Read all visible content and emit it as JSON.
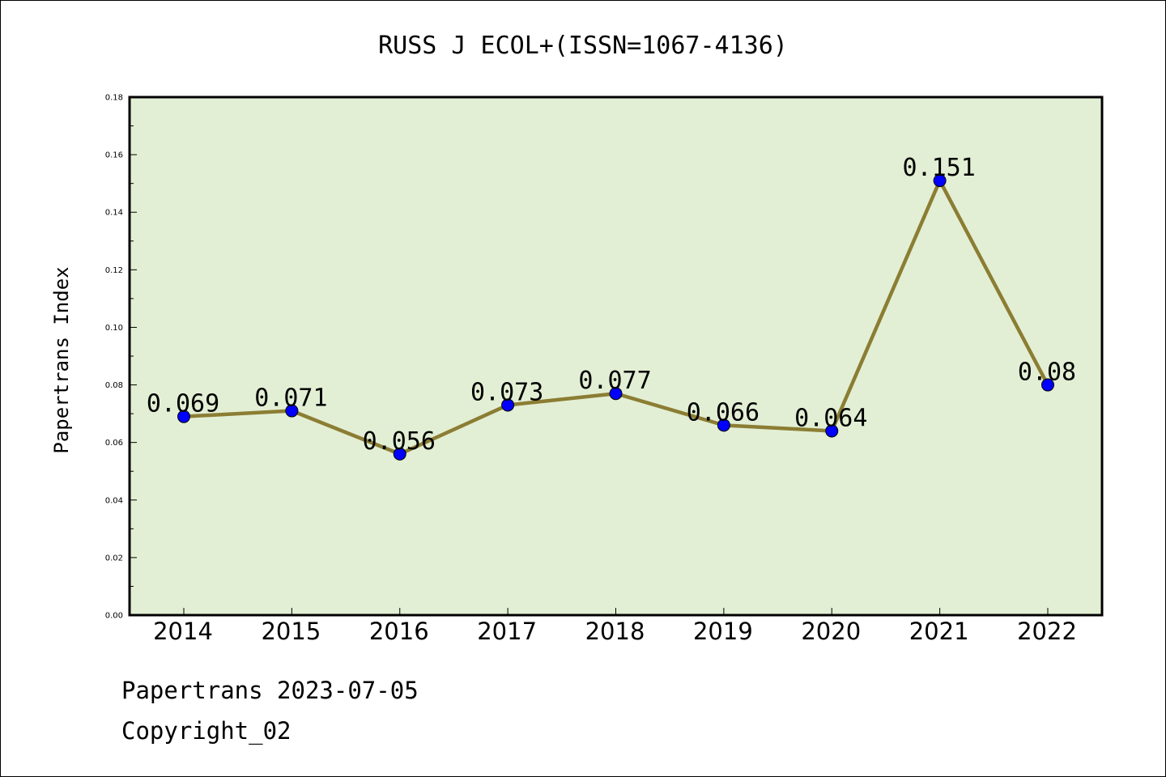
{
  "chart_data": {
    "type": "line",
    "title": "RUSS J ECOL+(ISSN=1067-4136)",
    "xlabel": "",
    "ylabel": "Papertrans Index",
    "categories": [
      "2014",
      "2015",
      "2016",
      "2017",
      "2018",
      "2019",
      "2020",
      "2021",
      "2022"
    ],
    "values": [
      0.069,
      0.071,
      0.056,
      0.073,
      0.077,
      0.066,
      0.064,
      0.151,
      0.08
    ],
    "data_labels": [
      "0.069",
      "0.071",
      "0.056",
      "0.073",
      "0.077",
      "0.066",
      "0.064",
      "0.151",
      "0.08"
    ],
    "ylim": [
      0,
      0.18
    ],
    "yticks": [
      "0.00",
      "0.02",
      "0.04",
      "0.06",
      "0.08",
      "0.10",
      "0.12",
      "0.14",
      "0.16",
      "0.18"
    ],
    "grid": false,
    "legend": "none",
    "colors": {
      "plot_background": "#e2efd4",
      "line": "#8b7d33",
      "marker": "#0000ff"
    }
  },
  "footer": {
    "line1": "Papertrans 2023-07-05",
    "line2": "Copyright_02"
  }
}
